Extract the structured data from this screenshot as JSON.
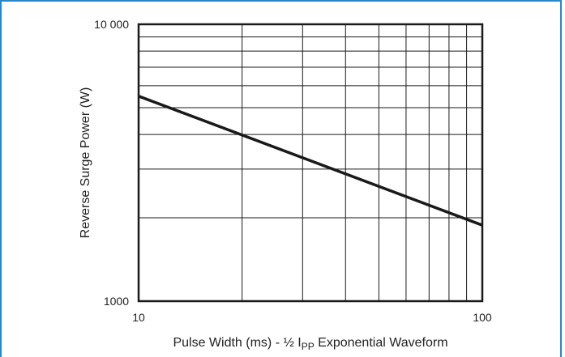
{
  "chart_data": {
    "type": "line",
    "x_scale": "log",
    "y_scale": "log",
    "xlim": [
      10,
      100
    ],
    "ylim": [
      1000,
      10000
    ],
    "x_ticks": [
      {
        "value": 10,
        "label": "10"
      },
      {
        "value": 100,
        "label": "100"
      }
    ],
    "y_ticks": [
      {
        "value": 10000,
        "label": "10 000"
      },
      {
        "value": 1000,
        "label": "1000"
      }
    ],
    "grid": true,
    "xlabel": {
      "prefix": "Pulse Width (ms) - ½ I",
      "subscript": "PP",
      "suffix": " Exponential Waveform"
    },
    "ylabel": "Reverse Surge Power (W)",
    "series": [
      {
        "x": [
          10,
          100
        ],
        "y": [
          5500,
          1880
        ],
        "color": "#1a1a1a"
      }
    ]
  }
}
